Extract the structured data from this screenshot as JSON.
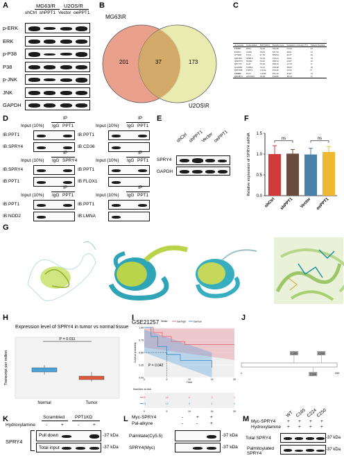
{
  "panels": {
    "A": "A",
    "B": "B",
    "C": "C",
    "D": "D",
    "E": "E",
    "F": "F",
    "G": "G",
    "H": "H",
    "I": "I",
    "J": "J",
    "K": "K",
    "L": "L",
    "M": "M"
  },
  "panel_a": {
    "groups": [
      "MG63/R",
      "U2OS/R"
    ],
    "lanes": [
      "shCtrl",
      "shPPT1",
      "Vector",
      "oePPT1"
    ],
    "rows": [
      "p-ERK",
      "ERK",
      "p-P38",
      "P38",
      "p-JNK",
      "JNK",
      "GAPDH"
    ]
  },
  "panel_b": {
    "set1": "MG63\\R",
    "set2": "U2OS\\R",
    "left_only": "201",
    "overlap": "37",
    "right_only": "173",
    "colors": {
      "left": "#e9a08d",
      "right": "#e6e7a3",
      "overlap": "#d4aa6a"
    }
  },
  "panel_c": {
    "headers": [
      "Accession",
      "Gene names",
      "MW [kDa]",
      "Protein score",
      "Sequence coverage [%]",
      "Unique Peptides"
    ],
    "rows": [
      [
        "P50897",
        "PPT1",
        "34.19",
        "702.58",
        "53.24",
        "23"
      ],
      [
        "P16671",
        "CD36",
        "53.05",
        "521.50",
        "48.61",
        "21"
      ],
      [
        "O75695",
        "Flox1",
        "47.56",
        "508.64",
        "46.37",
        "20"
      ],
      [
        "Q9C004",
        "SPRY4",
        "32.54",
        "310.24",
        "30.01",
        "19"
      ],
      [
        "Q9UPT3",
        "NOD2",
        "53.42",
        "298.54",
        "43.07",
        "22"
      ],
      [
        "Q01723",
        "Gal3",
        "35.04",
        "298.34",
        "22.10",
        "11"
      ],
      [
        "Q14D09",
        "LMNA",
        "74.12",
        "258.48",
        "38.60",
        "18"
      ],
      [
        "Q9Y4E8",
        "USP15",
        "112.42",
        "256.40",
        "22.02",
        "8"
      ],
      [
        "P06888",
        "FLT1",
        "112.80",
        "255.10",
        "43.67",
        "13"
      ],
      [
        "Q8CHL9",
        "GPCPD1",
        "76.04",
        "234.80",
        "36.54",
        "11"
      ]
    ]
  },
  "panel_d": {
    "ip": "IP",
    "input": "Input (10%)",
    "igg": "IgG",
    "blocks": [
      {
        "ip_target": "PPT1",
        "rows": [
          "IB:PPT1",
          "IB:SPRY4"
        ]
      },
      {
        "ip_target": "PPT1",
        "rows": [
          "IB:PPT1",
          "IB:CD36"
        ]
      },
      {
        "ip_target": "SPRY4",
        "rows": [
          "IB:SPRY4",
          "IB:PPT1"
        ]
      },
      {
        "ip_target": "PPT1",
        "rows": [
          "IB:PPT1",
          "IB:FLOX1"
        ]
      },
      {
        "ip_target": "PPT1",
        "rows": [
          "IB:PPT1",
          "IB:NOD2"
        ]
      },
      {
        "ip_target": "PPT1",
        "rows": [
          "IB:PPT1",
          "IB:LMNA"
        ]
      }
    ]
  },
  "panel_e": {
    "lanes": [
      "shCtrl",
      "shPPT1",
      "Vector",
      "oePPT1"
    ],
    "rows": [
      "SPRY4",
      "GAPDH"
    ]
  },
  "panel_f": {
    "chart_data": {
      "type": "bar",
      "categories": [
        "shCtrl",
        "shPPT1",
        "Vector",
        "oePPT1"
      ],
      "values": [
        1.0,
        1.01,
        0.99,
        1.05
      ],
      "errors": [
        0.2,
        0.1,
        0.15,
        0.13
      ],
      "ylabel": "Relative expression of SPRY4 mRNA",
      "ylim": [
        0,
        1.5
      ],
      "yticks": [
        "0.0",
        "0.5",
        "1.0",
        "1.5"
      ],
      "significance": [
        "ns",
        "ns"
      ],
      "colors": [
        "#cf3a3a",
        "#6b4b3b",
        "#4a7fa8",
        "#f0b732"
      ]
    }
  },
  "panel_h": {
    "title": "Expression level of SPRY4 in tumor vs normal tissue",
    "pvalue": "P = 0.011",
    "ylabel": "Transcript per million",
    "categories": [
      "Normal",
      "Tumor"
    ],
    "colors": [
      "#4aa3d8",
      "#e0583a"
    ]
  },
  "panel_i": {
    "title": "GSE21257",
    "strata_label": "Strata",
    "strata": [
      "low-high",
      "low-low"
    ],
    "pvalue": "P = 0.042",
    "xlabel": "Time",
    "ylabel": "Survival probability",
    "xticks": [
      "0",
      "5",
      "10",
      "15",
      "20"
    ],
    "yticks": [
      "0.00",
      "0.25",
      "0.50",
      "0.75",
      "1.00"
    ],
    "risk_title": "Number at risk",
    "risk_rows": [
      [
        "30",
        "18",
        "6",
        "3",
        "1"
      ],
      [
        "23",
        "12",
        "3",
        "1",
        "0"
      ]
    ],
    "colors": [
      "#e36a7a",
      "#3d95d6"
    ]
  },
  "panel_j": {
    "sites": [
      "C165",
      "C250",
      "C224"
    ],
    "start": "1",
    "end": "299"
  },
  "panel_k": {
    "labels": [
      "Scrambled",
      "PPT1KD"
    ],
    "hydroxylamine": "Hydroxylamine",
    "signs": [
      "-",
      "+",
      "-",
      "+"
    ],
    "row_label": "SPRY4",
    "rows": [
      "Pull down",
      "Total input"
    ],
    "kda": [
      "-37 kDa",
      "-37 kDa"
    ]
  },
  "panel_l": {
    "rows_top": [
      "Myc-SPRY4",
      "Pal-alkyne"
    ],
    "signs": [
      [
        "-",
        "+",
        "+"
      ],
      [
        "-",
        "-",
        "+"
      ]
    ],
    "rows": [
      "Palmitate(Cy5.5)",
      "SPRY4(Myc)"
    ],
    "kda": [
      "-37 kDa",
      "-37 kDa"
    ]
  },
  "panel_m": {
    "lanes": [
      "WT",
      "C165",
      "C224",
      "C250"
    ],
    "rows_top": [
      "Myc-SPRY4",
      "Hydroxylamine"
    ],
    "signs": [
      "+",
      "+",
      "+",
      "+"
    ],
    "rows": [
      "Total SPRY4",
      "Palmitoylated SPRY4"
    ],
    "kda": [
      "-37 kDa",
      "-37 kDa"
    ]
  }
}
